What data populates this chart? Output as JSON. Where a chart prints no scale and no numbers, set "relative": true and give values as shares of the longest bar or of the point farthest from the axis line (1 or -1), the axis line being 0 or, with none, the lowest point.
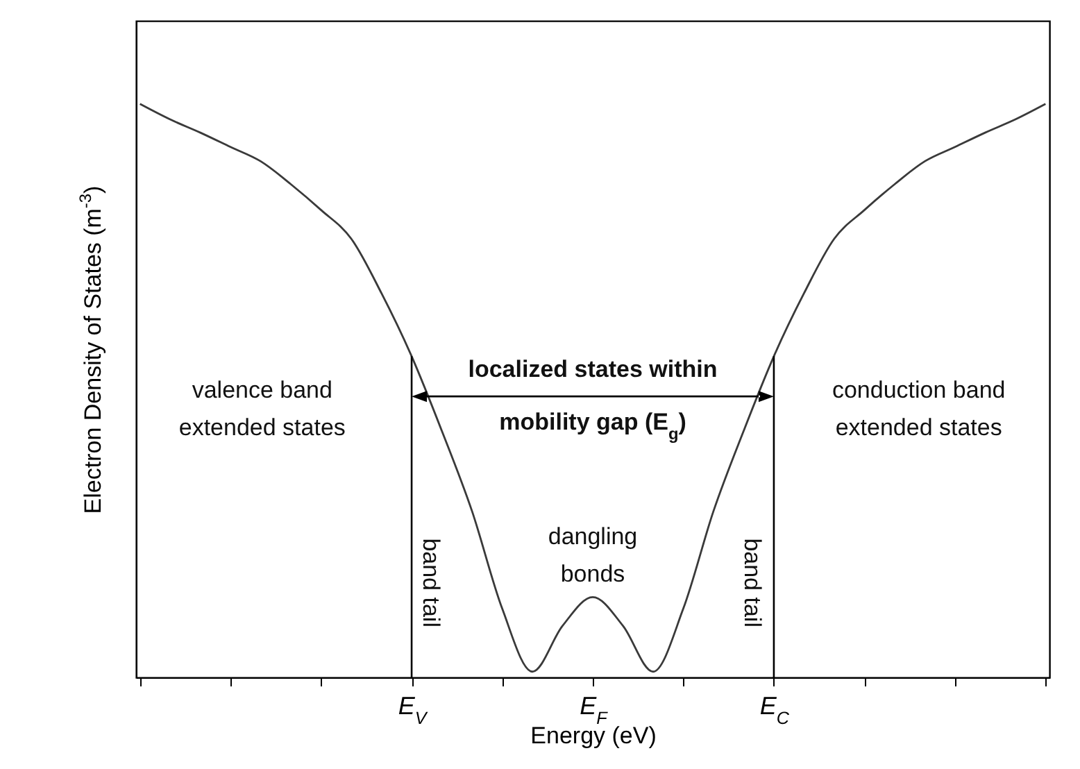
{
  "chart_data": {
    "type": "line",
    "xlabel": "Energy (eV)",
    "ylabel": "Electron Density of States (m$^{-3}$)",
    "relative": true,
    "categories": [
      null,
      null,
      null,
      null,
      null,
      null,
      null,
      null,
      null,
      "E$_{V}$",
      null,
      null,
      null,
      null,
      null,
      "E$_{F}$",
      null,
      null,
      null,
      null,
      null,
      "E$_{C}$",
      null,
      null,
      null,
      null,
      null,
      null,
      null,
      null,
      null
    ],
    "series": [
      {
        "color": "#3a3a3a",
        "values": [
          1,
          0.973,
          0.95,
          0.925,
          0.9,
          0.86,
          0.815,
          0.765,
          0.67,
          0.56,
          0.43,
          0.29,
          0.12,
          0.01,
          0.09,
          0.14,
          0.09,
          0.01,
          0.12,
          0.29,
          0.43,
          0.56,
          0.67,
          0.765,
          0.815,
          0.86,
          0.9,
          0.925,
          0.95,
          0.973,
          1
        ]
      }
    ],
    "ref_lines": [
      {
        "axis": "x",
        "value": "E$_{V}$",
        "label": null,
        "color": "#000000"
      },
      {
        "axis": "x",
        "value": "E$_{C}$",
        "label": null,
        "color": "#000000"
      }
    ],
    "annotations": [
      "valence band\nextended states",
      "localized states within\nmobility gap (E$_{g}$)",
      "conduction band\nextended states",
      "band tail",
      "dangling\nbonds",
      "band tail"
    ]
  }
}
